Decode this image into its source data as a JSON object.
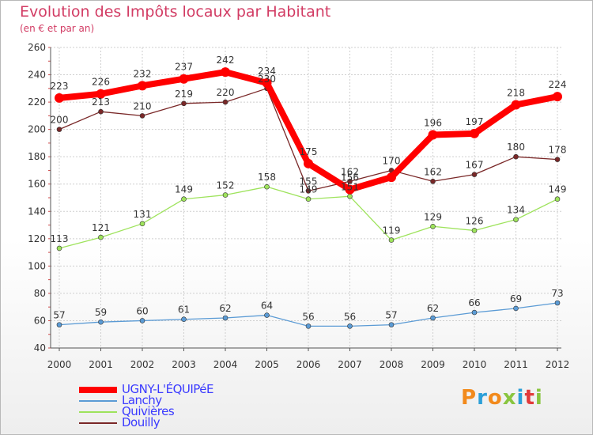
{
  "header": {
    "title": "Evolution des Impôts locaux par Habitant",
    "subtitle": "(en € et par an)"
  },
  "brand": {
    "text": "Proxiti",
    "colors": [
      "#f28a1c",
      "#2b9fd8",
      "#f28a1c",
      "#89c53f",
      "#2b9fd8",
      "#e23a3a",
      "#89c53f"
    ]
  },
  "chart_data": {
    "type": "line",
    "x": [
      "2000",
      "2001",
      "2002",
      "2003",
      "2004",
      "2005",
      "2006",
      "2007",
      "2008",
      "2009",
      "2010",
      "2011",
      "2012"
    ],
    "ylim": [
      40,
      260
    ],
    "yticks": [
      "40",
      "60",
      "80",
      "100",
      "120",
      "140",
      "160",
      "180",
      "200",
      "220",
      "240",
      "260"
    ],
    "grid": true,
    "legend_position": "bottom-left",
    "series": [
      {
        "name": "UGNY-L'ÉQUIPéE",
        "color": "#ff0000",
        "values": [
          223,
          226,
          232,
          237,
          242,
          234,
          175,
          156,
          165,
          196,
          197,
          218,
          224
        ],
        "labels": [
          "223",
          "226",
          "232",
          "237",
          "242",
          "234",
          "175",
          "156",
          "",
          "196",
          "197",
          "218",
          "224"
        ]
      },
      {
        "name": "Lanchy",
        "color": "#5b9bd5",
        "values": [
          57,
          59,
          60,
          61,
          62,
          64,
          56,
          56,
          57,
          62,
          66,
          69,
          73
        ],
        "labels": [
          "57",
          "59",
          "60",
          "61",
          "62",
          "64",
          "56",
          "56",
          "57",
          "62",
          "66",
          "69",
          "73"
        ]
      },
      {
        "name": "Quivières",
        "color": "#9ee35c",
        "values": [
          113,
          121,
          131,
          149,
          152,
          158,
          149,
          151,
          119,
          129,
          126,
          134,
          149
        ],
        "labels": [
          "113",
          "121",
          "131",
          "149",
          "152",
          "158",
          "149",
          "151",
          "119",
          "129",
          "126",
          "134",
          "149"
        ]
      },
      {
        "name": "Douilly",
        "color": "#7a2828",
        "values": [
          200,
          213,
          210,
          219,
          220,
          230,
          155,
          162,
          170,
          162,
          167,
          180,
          178
        ],
        "labels": [
          "200",
          "213",
          "210",
          "219",
          "220",
          "230",
          "155",
          "162",
          "170",
          "162",
          "167",
          "180",
          "178"
        ]
      }
    ]
  }
}
